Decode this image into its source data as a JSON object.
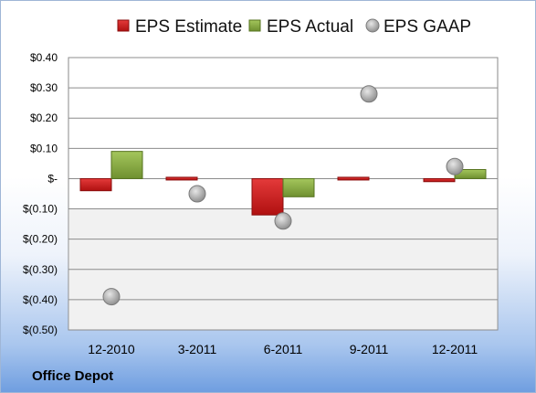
{
  "chart_data": {
    "type": "bar",
    "categories": [
      "12-2010",
      "3-2011",
      "6-2011",
      "9-2011",
      "12-2011"
    ],
    "series": [
      {
        "name": "EPS Estimate",
        "kind": "bar",
        "color": "#d42020",
        "values": [
          -0.04,
          0.0,
          -0.12,
          0.0,
          -0.01
        ]
      },
      {
        "name": "EPS Actual",
        "kind": "bar",
        "color": "#8db048",
        "values": [
          0.09,
          null,
          -0.06,
          null,
          0.03
        ]
      },
      {
        "name": "EPS GAAP",
        "kind": "scatter",
        "color": "#a8a8a8",
        "values": [
          -0.39,
          -0.05,
          -0.14,
          0.28,
          0.04
        ]
      }
    ],
    "ylim": [
      -0.5,
      0.4
    ],
    "yticks": [
      0.4,
      0.3,
      0.2,
      0.1,
      0.0,
      -0.1,
      -0.2,
      -0.3,
      -0.4,
      -0.5
    ],
    "ytick_labels": [
      "$0.40",
      "$0.30",
      "$0.20",
      "$0.10",
      "$-",
      "$(0.10)",
      "$(0.20)",
      "$(0.30)",
      "$(0.40)",
      "$(0.50)"
    ],
    "legend_position": "top",
    "grid": true
  },
  "company": "Office Depot"
}
